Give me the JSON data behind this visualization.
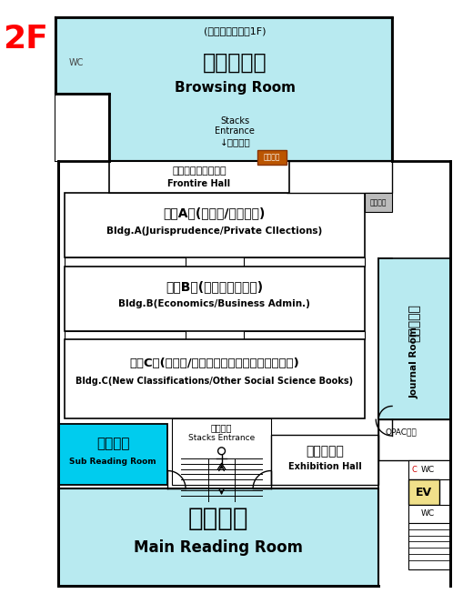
{
  "bg": "#ffffff",
  "lb": "#b8eaf0",
  "cyan": "#00ccee",
  "rooms": {
    "browsing_subtitle": "(フロンティア館1F)",
    "browsing_ja": "開架図書室",
    "browsing_en": "Browsing Room",
    "stacks_en1": "Stacks",
    "stacks_en2": "Entrance",
    "stacks_ja": "↓書庫入口",
    "printer": "プリンタ",
    "frontier_ja": "フロンティア館書庫",
    "frontier_en": "Frontire Hall",
    "bldgA_ja": "書庫A棟(法学系/個人文庫)",
    "bldgA_en": "Bldg.A(Jurisprudence/Private CIlections)",
    "copy": "コピー機",
    "bldgB_ja": "書庫B棟(経済・経営学系)",
    "bldgB_en": "Bldg.B(Economics/Business Admin.)",
    "bldgC_ja": "書庫C棟(新分類/その他の人文・社会科学系図書)",
    "bldgC_en": "Bldg.C(New Classifications/Other Social Science Books)",
    "journal_ja": "雑誌閲覧室",
    "journal_en": "Journal Room",
    "opac": "OPAC端末",
    "cwc": "WC",
    "ev": "EV",
    "wc": "WC",
    "stacks_ent_ja": "書庫入口",
    "stacks_ent_en": "Stacks Entrance",
    "sub_ja": "小閲覧室",
    "sub_en": "Sub Reading Room",
    "exh_ja": "展示ホール",
    "exh_en": "Exhibition Hall",
    "main_ja": "大閲覧室",
    "main_en": "Main Reading Room",
    "wc_top": "WC",
    "label_2f": "2F"
  }
}
